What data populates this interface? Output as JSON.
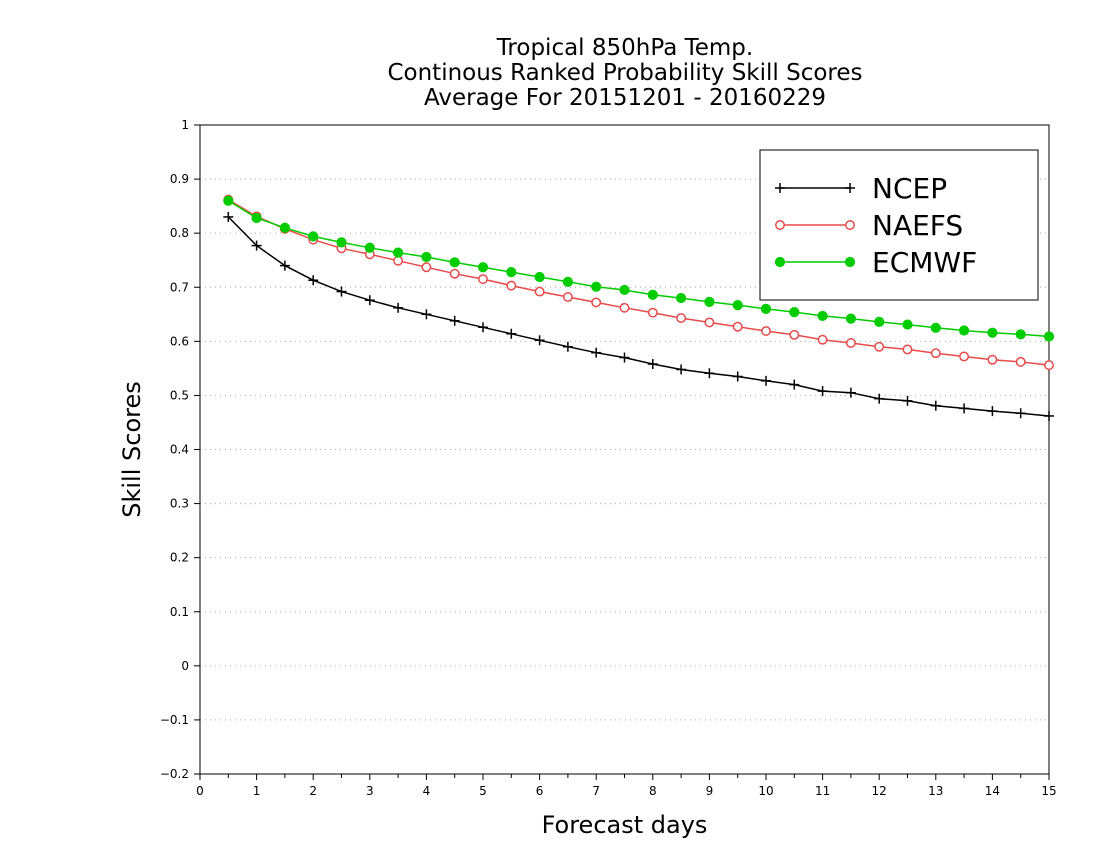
{
  "title_lines": [
    "Tropical 850hPa Temp.",
    "Continous Ranked Probability Skill Scores",
    "Average For 20151201 - 20160229"
  ],
  "chart_data": {
    "type": "line",
    "title": "Tropical 850hPa Temp. / Continous Ranked Probability Skill Scores / Average For 20151201 - 20160229",
    "xlabel": "Forecast days",
    "ylabel": "Skill Scores",
    "xlim": [
      0,
      15
    ],
    "ylim": [
      -0.2,
      1.0
    ],
    "xticks": [
      "0",
      "1",
      "2",
      "3",
      "4",
      "5",
      "6",
      "7",
      "8",
      "9",
      "10",
      "11",
      "12",
      "13",
      "14",
      "15"
    ],
    "yticks": [
      "-0.2",
      "-0.1",
      "0",
      "0.1",
      "0.2",
      "0.3",
      "0.4",
      "0.5",
      "0.6",
      "0.7",
      "0.8",
      "0.9",
      "1"
    ],
    "grid": "horizontal dotted",
    "legend_position": "top-right",
    "x": [
      0.5,
      1,
      1.5,
      2,
      2.5,
      3,
      3.5,
      4,
      4.5,
      5,
      5.5,
      6,
      6.5,
      7,
      7.5,
      8,
      8.5,
      9,
      9.5,
      10,
      10.5,
      11,
      11.5,
      12,
      12.5,
      13,
      13.5,
      14,
      14.5,
      15
    ],
    "series": [
      {
        "name": "NCEP",
        "color": "#000000",
        "marker": "plus",
        "values": [
          0.83,
          0.777,
          0.74,
          0.713,
          0.692,
          0.676,
          0.662,
          0.65,
          0.638,
          0.626,
          0.614,
          0.602,
          0.59,
          0.579,
          0.57,
          0.558,
          0.548,
          0.541,
          0.535,
          0.527,
          0.52,
          0.508,
          0.505,
          0.494,
          0.49,
          0.481,
          0.476,
          0.471,
          0.467,
          0.462
        ]
      },
      {
        "name": "NAEFS",
        "color": "#e84a4a",
        "marker": "open-circle",
        "values": [
          0.862,
          0.831,
          0.808,
          0.788,
          0.772,
          0.761,
          0.749,
          0.737,
          0.725,
          0.715,
          0.703,
          0.692,
          0.682,
          0.672,
          0.662,
          0.653,
          0.643,
          0.635,
          0.627,
          0.619,
          0.612,
          0.603,
          0.597,
          0.59,
          0.585,
          0.578,
          0.572,
          0.566,
          0.562,
          0.556
        ]
      },
      {
        "name": "ECMWF",
        "color": "#00cc00",
        "marker": "filled-circle",
        "values": [
          0.86,
          0.828,
          0.81,
          0.794,
          0.783,
          0.773,
          0.764,
          0.756,
          0.746,
          0.737,
          0.728,
          0.719,
          0.71,
          0.701,
          0.695,
          0.686,
          0.68,
          0.673,
          0.667,
          0.66,
          0.654,
          0.647,
          0.642,
          0.636,
          0.631,
          0.625,
          0.62,
          0.616,
          0.613,
          0.609
        ]
      }
    ]
  }
}
